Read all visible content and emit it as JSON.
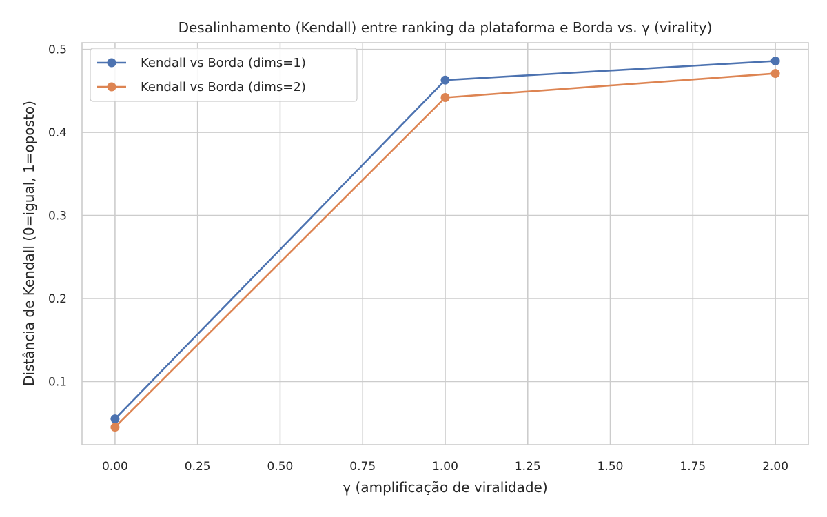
{
  "chart_data": {
    "type": "line",
    "title": "Desalinhamento (Kendall) entre ranking da plataforma e Borda vs. γ (virality)",
    "xlabel": "γ (amplificação de viralidade)",
    "ylabel": "Distância de Kendall (0=igual, 1=oposto)",
    "x": [
      0.0,
      1.0,
      2.0
    ],
    "xlim": [
      -0.1,
      2.1
    ],
    "ylim": [
      0.024,
      0.508
    ],
    "xticks": [
      0.0,
      0.25,
      0.5,
      0.75,
      1.0,
      1.25,
      1.5,
      1.75,
      2.0
    ],
    "xtick_labels": [
      "0.00",
      "0.25",
      "0.50",
      "0.75",
      "1.00",
      "1.25",
      "1.50",
      "1.75",
      "2.00"
    ],
    "yticks": [
      0.1,
      0.2,
      0.3,
      0.4,
      0.5
    ],
    "ytick_labels": [
      "0.1",
      "0.2",
      "0.3",
      "0.4",
      "0.5"
    ],
    "grid": true,
    "legend_position": "top-left",
    "series": [
      {
        "name": "Kendall vs Borda (dims=1)",
        "values": [
          0.055,
          0.463,
          0.486
        ],
        "color": "#4c72b0",
        "marker": "circle"
      },
      {
        "name": "Kendall vs Borda (dims=2)",
        "values": [
          0.045,
          0.442,
          0.471
        ],
        "color": "#dd8452",
        "marker": "circle"
      }
    ]
  }
}
